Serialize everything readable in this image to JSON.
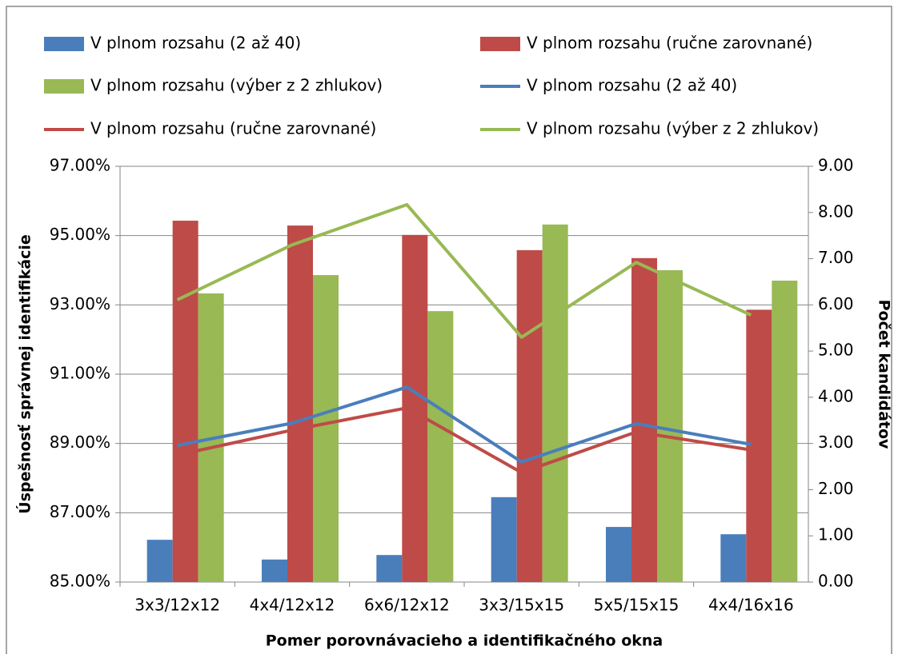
{
  "chart_data": {
    "type": "combo",
    "x_label": "Pomer porovnávacieho a identifikačného okna",
    "y_label": "Úspešnosť správnej identifikácie",
    "y2_label": "Počet kandidátov",
    "categories": [
      "3x3/12x12",
      "4x4/12x12",
      "6x6/12x12",
      "3x3/15x15",
      "5x5/15x15",
      "4x4/16x16"
    ],
    "series": [
      {
        "name": "V plnom rozsahu (2 až 40)",
        "type": "bar",
        "color": "#4a7ebb",
        "values": [
          86.22,
          85.65,
          85.78,
          87.45,
          86.59,
          86.38
        ]
      },
      {
        "name": "V plnom rozsahu (ručne zarovnané)",
        "type": "bar",
        "color": "#be4b48",
        "values": [
          95.43,
          95.29,
          95.02,
          94.58,
          94.35,
          92.86
        ]
      },
      {
        "name": "V plnom rozsahu (výber z 2 zhlukov)",
        "type": "bar",
        "color": "#98b954",
        "values": [
          93.33,
          93.86,
          92.82,
          95.32,
          94.0,
          93.7
        ]
      },
      {
        "name": "V plnom rozsahu (2 až 40)",
        "type": "line",
        "axis": "y2",
        "color": "#4a7ebb",
        "values": [
          2.96,
          3.44,
          4.22,
          2.6,
          3.43,
          2.98
        ]
      },
      {
        "name": "V plnom rozsahu (ručne zarovnané)",
        "type": "line",
        "axis": "y2",
        "color": "#be4b48",
        "values": [
          2.75,
          3.29,
          3.77,
          2.37,
          3.25,
          2.86
        ]
      },
      {
        "name": "V plnom rozsahu (výber z 2 zhlukov)",
        "type": "line",
        "axis": "y2",
        "color": "#98b954",
        "values": [
          6.11,
          7.3,
          8.17,
          5.3,
          6.92,
          5.78
        ]
      }
    ],
    "ylim": [
      85,
      97
    ],
    "yticks": [
      {
        "value": 85,
        "label": "85.00%"
      },
      {
        "value": 87,
        "label": "87.00%"
      },
      {
        "value": 89,
        "label": "89.00%"
      },
      {
        "value": 91,
        "label": "91.00%"
      },
      {
        "value": 93,
        "label": "93.00%"
      },
      {
        "value": 95,
        "label": "95.00%"
      },
      {
        "value": 97,
        "label": "97.00%"
      }
    ],
    "y2lim": [
      0,
      9
    ],
    "y2ticks": [
      {
        "value": 0,
        "label": "0.00"
      },
      {
        "value": 1,
        "label": "1.00"
      },
      {
        "value": 2,
        "label": "2.00"
      },
      {
        "value": 3,
        "label": "3.00"
      },
      {
        "value": 4,
        "label": "4.00"
      },
      {
        "value": 5,
        "label": "5.00"
      },
      {
        "value": 6,
        "label": "6.00"
      },
      {
        "value": 7,
        "label": "7.00"
      },
      {
        "value": 8,
        "label": "8.00"
      },
      {
        "value": 9,
        "label": "9.00"
      }
    ],
    "grid": true,
    "legend": "top"
  }
}
